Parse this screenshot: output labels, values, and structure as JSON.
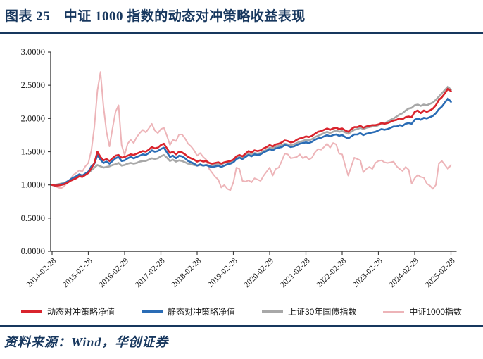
{
  "header": {
    "title": "图表 25　中证 1000 指数的动态对冲策略收益表现"
  },
  "source": {
    "text": "资料来源：Wind，华创证券"
  },
  "colors": {
    "accent_navy": "#17375E",
    "axis_line": "#404040",
    "tick_text": "#1a1a1a",
    "series_red": "#D9242D",
    "series_blue": "#2A6CB5",
    "series_gray": "#A8A8A8",
    "series_pink": "#EDB4B8"
  },
  "chart_data": {
    "type": "line",
    "title": "中证1000指数的动态对冲策略收益表现",
    "xlabel": "",
    "ylabel": "",
    "ylim": [
      0,
      3
    ],
    "grid": false,
    "legend_position": "bottom",
    "x_range_monthly": [
      "2014-02",
      "2025-02"
    ],
    "points_per_series": 133,
    "y_tick_labels": [
      "0.0000",
      "0.5000",
      "1.0000",
      "1.5000",
      "2.0000",
      "2.5000",
      "3.0000"
    ],
    "x_tick_labels": [
      "2014-02-28",
      "2015-02-28",
      "2016-02-29",
      "2017-02-28",
      "2018-02-28",
      "2019-02-28",
      "2020-02-29",
      "2021-02-28",
      "2022-02-28",
      "2023-02-28",
      "2024-02-29",
      "2025-02-28"
    ],
    "series": [
      {
        "name": "动态对冲策略净值",
        "slug": "dynamic-hedge-nav",
        "color": "#D9242D",
        "width": 2.6,
        "values": [
          1.0,
          0.99,
          0.99,
          1.0,
          1.01,
          1.03,
          1.06,
          1.08,
          1.1,
          1.13,
          1.12,
          1.15,
          1.18,
          1.25,
          1.33,
          1.5,
          1.42,
          1.37,
          1.39,
          1.36,
          1.4,
          1.44,
          1.45,
          1.41,
          1.42,
          1.44,
          1.46,
          1.45,
          1.47,
          1.49,
          1.51,
          1.5,
          1.53,
          1.57,
          1.55,
          1.56,
          1.6,
          1.62,
          1.55,
          1.48,
          1.5,
          1.46,
          1.5,
          1.49,
          1.46,
          1.42,
          1.4,
          1.38,
          1.35,
          1.37,
          1.35,
          1.36,
          1.33,
          1.32,
          1.33,
          1.34,
          1.32,
          1.34,
          1.35,
          1.36,
          1.38,
          1.43,
          1.45,
          1.43,
          1.47,
          1.51,
          1.49,
          1.52,
          1.51,
          1.52,
          1.55,
          1.57,
          1.6,
          1.58,
          1.61,
          1.62,
          1.64,
          1.67,
          1.66,
          1.64,
          1.65,
          1.68,
          1.7,
          1.71,
          1.73,
          1.72,
          1.74,
          1.77,
          1.8,
          1.81,
          1.83,
          1.85,
          1.83,
          1.85,
          1.86,
          1.84,
          1.85,
          1.82,
          1.8,
          1.84,
          1.87,
          1.87,
          1.89,
          1.86,
          1.88,
          1.89,
          1.9,
          1.9,
          1.91,
          1.93,
          1.92,
          1.93,
          1.95,
          1.97,
          1.98,
          2.0,
          1.99,
          2.02,
          2.03,
          2.02,
          2.1,
          2.12,
          2.08,
          2.12,
          2.1,
          2.12,
          2.15,
          2.2,
          2.28,
          2.32,
          2.38,
          2.45,
          2.41
        ]
      },
      {
        "name": "静态对冲策略净值",
        "slug": "static-hedge-nav",
        "color": "#2A6CB5",
        "width": 2.6,
        "values": [
          1.0,
          0.99,
          1.0,
          1.01,
          1.02,
          1.05,
          1.08,
          1.11,
          1.13,
          1.16,
          1.14,
          1.17,
          1.2,
          1.28,
          1.32,
          1.45,
          1.38,
          1.33,
          1.35,
          1.32,
          1.36,
          1.4,
          1.42,
          1.36,
          1.37,
          1.4,
          1.42,
          1.4,
          1.42,
          1.44,
          1.46,
          1.45,
          1.48,
          1.52,
          1.5,
          1.51,
          1.54,
          1.56,
          1.49,
          1.42,
          1.44,
          1.4,
          1.44,
          1.43,
          1.4,
          1.36,
          1.34,
          1.32,
          1.29,
          1.31,
          1.29,
          1.3,
          1.28,
          1.27,
          1.28,
          1.29,
          1.27,
          1.29,
          1.31,
          1.32,
          1.34,
          1.39,
          1.41,
          1.39,
          1.42,
          1.45,
          1.43,
          1.46,
          1.45,
          1.46,
          1.49,
          1.51,
          1.54,
          1.52,
          1.55,
          1.56,
          1.57,
          1.6,
          1.59,
          1.57,
          1.58,
          1.6,
          1.62,
          1.63,
          1.64,
          1.63,
          1.65,
          1.68,
          1.7,
          1.71,
          1.73,
          1.75,
          1.73,
          1.75,
          1.76,
          1.74,
          1.75,
          1.72,
          1.7,
          1.73,
          1.76,
          1.76,
          1.78,
          1.75,
          1.77,
          1.78,
          1.79,
          1.8,
          1.82,
          1.84,
          1.83,
          1.84,
          1.86,
          1.88,
          1.88,
          1.9,
          1.89,
          1.92,
          1.93,
          1.92,
          1.98,
          2.0,
          1.98,
          2.01,
          2.0,
          2.02,
          2.04,
          2.08,
          2.14,
          2.18,
          2.24,
          2.3,
          2.25
        ]
      },
      {
        "name": "上证30年国债指数",
        "slug": "sse-30y-treasury-index",
        "color": "#A8A8A8",
        "width": 2.6,
        "values": [
          1.0,
          1.0,
          1.01,
          1.02,
          1.03,
          1.05,
          1.07,
          1.09,
          1.12,
          1.15,
          1.14,
          1.16,
          1.18,
          1.22,
          1.26,
          1.3,
          1.28,
          1.26,
          1.27,
          1.28,
          1.3,
          1.31,
          1.33,
          1.29,
          1.3,
          1.32,
          1.33,
          1.32,
          1.33,
          1.35,
          1.36,
          1.36,
          1.38,
          1.4,
          1.39,
          1.4,
          1.43,
          1.45,
          1.41,
          1.36,
          1.38,
          1.35,
          1.37,
          1.36,
          1.34,
          1.32,
          1.31,
          1.3,
          1.29,
          1.3,
          1.29,
          1.3,
          1.29,
          1.3,
          1.31,
          1.32,
          1.31,
          1.33,
          1.34,
          1.35,
          1.36,
          1.4,
          1.42,
          1.41,
          1.44,
          1.47,
          1.46,
          1.48,
          1.47,
          1.48,
          1.51,
          1.53,
          1.56,
          1.55,
          1.58,
          1.59,
          1.6,
          1.62,
          1.61,
          1.6,
          1.61,
          1.63,
          1.65,
          1.66,
          1.68,
          1.67,
          1.69,
          1.72,
          1.74,
          1.76,
          1.78,
          1.8,
          1.78,
          1.8,
          1.82,
          1.8,
          1.81,
          1.79,
          1.77,
          1.8,
          1.83,
          1.84,
          1.86,
          1.84,
          1.86,
          1.87,
          1.88,
          1.88,
          1.9,
          1.92,
          1.93,
          1.95,
          1.98,
          2.0,
          2.03,
          2.06,
          2.08,
          2.12,
          2.15,
          2.16,
          2.2,
          2.21,
          2.19,
          2.21,
          2.2,
          2.22,
          2.24,
          2.28,
          2.33,
          2.38,
          2.43,
          2.48,
          2.43
        ]
      },
      {
        "name": "中证1000指数",
        "slug": "csi-1000-index",
        "color": "#EDB4B8",
        "width": 2.0,
        "values": [
          1.0,
          0.98,
          0.96,
          0.95,
          0.98,
          1.03,
          1.08,
          1.15,
          1.18,
          1.22,
          1.2,
          1.28,
          1.33,
          1.52,
          1.88,
          2.42,
          2.7,
          2.18,
          1.8,
          1.58,
          1.85,
          2.1,
          2.2,
          1.6,
          1.45,
          1.62,
          1.68,
          1.63,
          1.72,
          1.78,
          1.83,
          1.79,
          1.85,
          1.92,
          1.82,
          1.78,
          1.84,
          1.86,
          1.74,
          1.6,
          1.68,
          1.66,
          1.76,
          1.76,
          1.7,
          1.62,
          1.58,
          1.52,
          1.44,
          1.48,
          1.42,
          1.38,
          1.24,
          1.18,
          1.12,
          1.08,
          0.96,
          1.0,
          0.94,
          0.92,
          1.04,
          1.26,
          1.24,
          1.06,
          1.05,
          1.07,
          1.04,
          1.1,
          1.08,
          1.06,
          1.14,
          1.2,
          1.26,
          1.14,
          1.24,
          1.26,
          1.36,
          1.47,
          1.46,
          1.4,
          1.41,
          1.42,
          1.46,
          1.4,
          1.43,
          1.38,
          1.41,
          1.49,
          1.54,
          1.53,
          1.57,
          1.62,
          1.56,
          1.63,
          1.61,
          1.47,
          1.46,
          1.29,
          1.14,
          1.28,
          1.41,
          1.39,
          1.37,
          1.19,
          1.24,
          1.27,
          1.24,
          1.33,
          1.36,
          1.37,
          1.34,
          1.33,
          1.34,
          1.35,
          1.28,
          1.24,
          1.21,
          1.27,
          1.23,
          1.02,
          1.1,
          1.15,
          1.12,
          1.11,
          1.02,
          0.99,
          0.94,
          1.0,
          1.32,
          1.36,
          1.3,
          1.24,
          1.3
        ]
      }
    ]
  }
}
